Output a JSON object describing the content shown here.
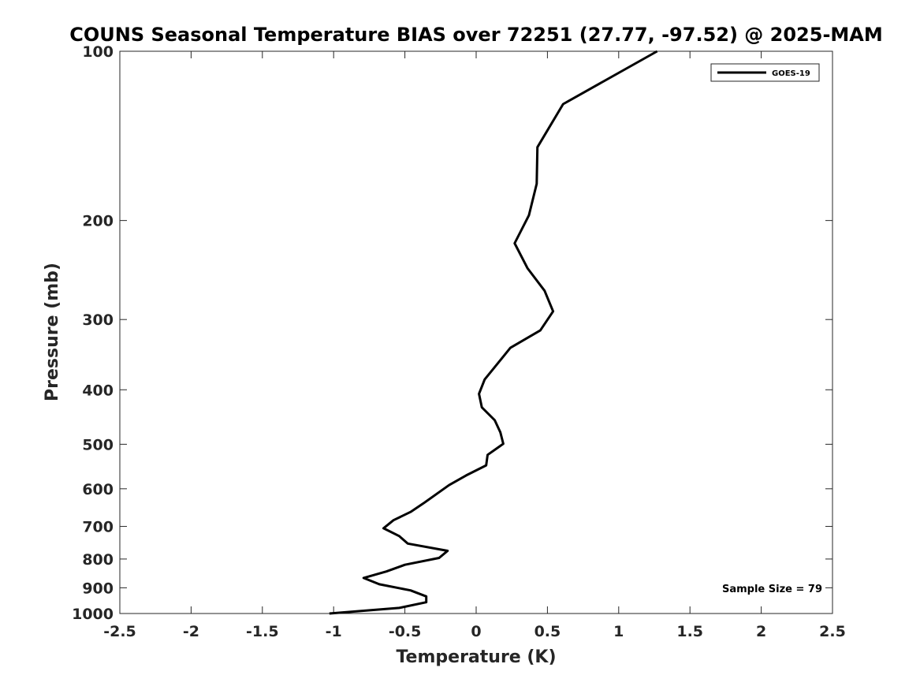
{
  "chart_data": {
    "type": "line",
    "title": "COUNS Seasonal Temperature BIAS over 72251 (27.77, -97.52) @ 2025-MAM",
    "xlabel": "Temperature (K)",
    "ylabel": "Pressure (mb)",
    "xlim": [
      -2.5,
      2.5
    ],
    "ylim": [
      100,
      1000
    ],
    "y_scale": "log",
    "y_reversed": true,
    "x_ticks": [
      {
        "value": -2.5,
        "label": "-2.5"
      },
      {
        "value": -2,
        "label": "-2"
      },
      {
        "value": -1.5,
        "label": "-1.5"
      },
      {
        "value": -1,
        "label": "-1"
      },
      {
        "value": -0.5,
        "label": "-0.5"
      },
      {
        "value": 0,
        "label": "0"
      },
      {
        "value": 0.5,
        "label": "0.5"
      },
      {
        "value": 1,
        "label": "1"
      },
      {
        "value": 1.5,
        "label": "1.5"
      },
      {
        "value": 2,
        "label": "2"
      },
      {
        "value": 2.5,
        "label": "2.5"
      }
    ],
    "y_ticks": [
      {
        "value": 100,
        "label": "100"
      },
      {
        "value": 200,
        "label": "200"
      },
      {
        "value": 300,
        "label": "300"
      },
      {
        "value": 400,
        "label": "400"
      },
      {
        "value": 500,
        "label": "500"
      },
      {
        "value": 600,
        "label": "600"
      },
      {
        "value": 700,
        "label": "700"
      },
      {
        "value": 800,
        "label": "800"
      },
      {
        "value": 900,
        "label": "900"
      },
      {
        "value": 1000,
        "label": "1000"
      }
    ],
    "grid": false,
    "legend_position": "top-right",
    "series": [
      {
        "name": "GOES-19",
        "color": "#000000",
        "points": [
          {
            "x": 1.27,
            "y": 100
          },
          {
            "x": 0.61,
            "y": 125
          },
          {
            "x": 0.43,
            "y": 150
          },
          {
            "x": 0.425,
            "y": 175
          },
          {
            "x": 0.37,
            "y": 200
          },
          {
            "x": 0.27,
            "y": 225
          },
          {
            "x": 0.36,
            "y": 250
          },
          {
            "x": 0.48,
            "y": 275
          },
          {
            "x": 0.54,
            "y": 300
          },
          {
            "x": 0.45,
            "y": 325
          },
          {
            "x": 0.24,
            "y": 350
          },
          {
            "x": 0.06,
            "y": 400
          },
          {
            "x": 0.02,
            "y": 425
          },
          {
            "x": 0.04,
            "y": 450
          },
          {
            "x": 0.13,
            "y": 475
          },
          {
            "x": 0.17,
            "y": 500
          },
          {
            "x": 0.19,
            "y": 525
          },
          {
            "x": 0.08,
            "y": 550
          },
          {
            "x": 0.07,
            "y": 575
          },
          {
            "x": -0.07,
            "y": 600
          },
          {
            "x": -0.19,
            "y": 625
          },
          {
            "x": -0.37,
            "y": 675
          },
          {
            "x": -0.46,
            "y": 700
          },
          {
            "x": -0.58,
            "y": 725
          },
          {
            "x": -0.65,
            "y": 750
          },
          {
            "x": -0.54,
            "y": 775
          },
          {
            "x": -0.48,
            "y": 800
          },
          {
            "x": -0.2,
            "y": 825
          },
          {
            "x": -0.26,
            "y": 850
          },
          {
            "x": -0.5,
            "y": 875
          },
          {
            "x": -0.63,
            "y": 900
          },
          {
            "x": -0.79,
            "y": 925
          },
          {
            "x": -0.68,
            "y": 950
          },
          {
            "x": -0.46,
            "y": 975
          },
          {
            "x": -0.35,
            "y": 1000
          },
          {
            "x": -0.35,
            "y": 1025
          },
          {
            "x": -0.54,
            "y": 1050
          },
          {
            "x": -1.03,
            "y": 1075
          }
        ]
      }
    ],
    "annotations": [
      {
        "text": "Sample Size = 79",
        "position": "bottom-right"
      }
    ]
  }
}
